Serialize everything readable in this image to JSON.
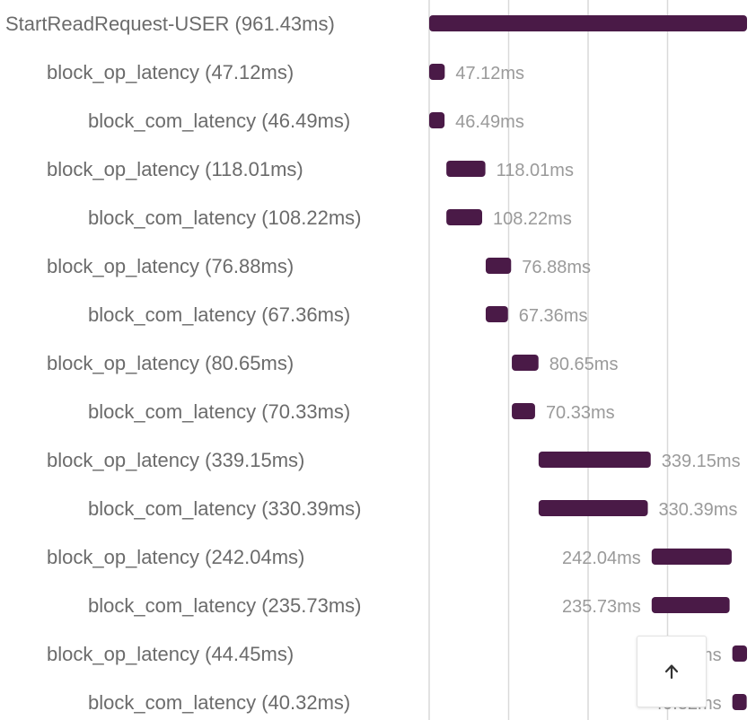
{
  "chart_data": {
    "type": "bar",
    "orientation": "horizontal",
    "unit": "ms",
    "total_ms": 961.43,
    "grid": true,
    "bar_color": "#4a1a47",
    "spans": [
      {
        "label": "StartReadRequest-USER (961.43ms)",
        "depth": 0,
        "start": 0,
        "duration": 961.43,
        "duration_label": ""
      },
      {
        "label": "block_op_latency (47.12ms)",
        "depth": 1,
        "start": 0,
        "duration": 47.12,
        "duration_label": "47.12ms"
      },
      {
        "label": "block_com_latency (46.49ms)",
        "depth": 2,
        "start": 0,
        "duration": 46.49,
        "duration_label": "46.49ms"
      },
      {
        "label": "block_op_latency (118.01ms)",
        "depth": 1,
        "start": 52,
        "duration": 118.01,
        "duration_label": "118.01ms"
      },
      {
        "label": "block_com_latency (108.22ms)",
        "depth": 2,
        "start": 52,
        "duration": 108.22,
        "duration_label": "108.22ms"
      },
      {
        "label": "block_op_latency (76.88ms)",
        "depth": 1,
        "start": 171,
        "duration": 76.88,
        "duration_label": "76.88ms"
      },
      {
        "label": "block_com_latency (67.36ms)",
        "depth": 2,
        "start": 171,
        "duration": 67.36,
        "duration_label": "67.36ms"
      },
      {
        "label": "block_op_latency (80.65ms)",
        "depth": 1,
        "start": 250,
        "duration": 80.65,
        "duration_label": "80.65ms"
      },
      {
        "label": "block_com_latency (70.33ms)",
        "depth": 2,
        "start": 250,
        "duration": 70.33,
        "duration_label": "70.33ms"
      },
      {
        "label": "block_op_latency (339.15ms)",
        "depth": 1,
        "start": 331,
        "duration": 339.15,
        "duration_label": "339.15ms"
      },
      {
        "label": "block_com_latency (330.39ms)",
        "depth": 2,
        "start": 331,
        "duration": 330.39,
        "duration_label": "330.39ms"
      },
      {
        "label": "block_op_latency (242.04ms)",
        "depth": 1,
        "start": 673,
        "duration": 242.04,
        "duration_label": "242.04ms"
      },
      {
        "label": "block_com_latency (235.73ms)",
        "depth": 2,
        "start": 673,
        "duration": 235.73,
        "duration_label": "235.73ms"
      },
      {
        "label": "block_op_latency (44.45ms)",
        "depth": 1,
        "start": 917,
        "duration": 44.45,
        "duration_label": "44.45ms"
      },
      {
        "label": "block_com_latency (40.32ms)",
        "depth": 2,
        "start": 917,
        "duration": 40.32,
        "duration_label": "40.32ms"
      }
    ]
  },
  "scroll_top": {
    "icon": "arrow-up-icon"
  }
}
